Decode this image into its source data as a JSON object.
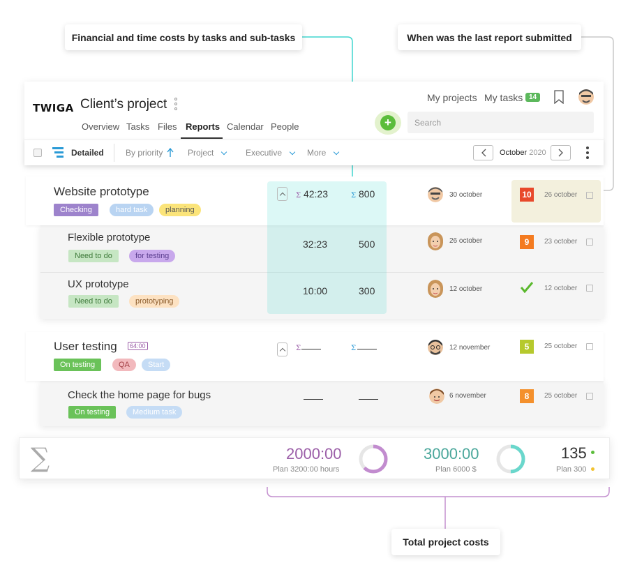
{
  "callouts": {
    "costs": "Financial and time costs by tasks and sub-tasks",
    "last_report": "When was the last report submitted",
    "total": "Total project costs"
  },
  "header": {
    "logo": "TWIGA",
    "project_title": "Client’s project",
    "tabs": [
      "Overview",
      "Tasks",
      "Files",
      "Reports",
      "Calendar",
      "People"
    ],
    "active_tab": "Reports",
    "my_projects": "My projects",
    "my_tasks": "My tasks",
    "my_tasks_count": "14",
    "search_placeholder": "Search"
  },
  "toolbar": {
    "view": "Detailed",
    "by_priority": "By priority",
    "project": "Project",
    "executive": "Executive",
    "more": "More",
    "month": "October",
    "year": "2020"
  },
  "tasks": [
    {
      "title": "Website prototype",
      "tags": [
        "Checking",
        "hard task",
        "planning"
      ],
      "time": "42:23",
      "cost": "800",
      "exec_date": "30 october",
      "report_count": "10",
      "report_date": "26 october",
      "subtasks": [
        {
          "title": "Flexible prototype",
          "tags": [
            "Need to do",
            "for testing"
          ],
          "time": "32:23",
          "cost": "500",
          "exec_date": "26 october",
          "report_count": "9",
          "report_date": "23 october"
        },
        {
          "title": "UX prototype",
          "tags": [
            "Need to do",
            "prototyping"
          ],
          "time": "10:00",
          "cost": "300",
          "exec_date": "12 october",
          "report_count": "",
          "report_date": "12 october"
        }
      ]
    },
    {
      "title": "User testing",
      "estimate": "64:00",
      "tags": [
        "On testing",
        "QA",
        "Start"
      ],
      "exec_date": "12 november",
      "report_count": "5",
      "report_date": "25 october",
      "subtasks": [
        {
          "title": "Check the home page for bugs",
          "tags": [
            "On testing",
            "Medium task"
          ],
          "exec_date": "6 november",
          "report_count": "8",
          "report_date": "25 october"
        }
      ]
    }
  ],
  "totals": {
    "sigma": "∑",
    "time": "2000:00",
    "time_plan": "Plan 3200:00 hours",
    "time_fraction": 0.625,
    "cost": "3000:00",
    "cost_plan": "Plan 6000 $",
    "cost_fraction": 0.5,
    "reports": "135",
    "reports_plan": "Plan 300"
  },
  "colors": {
    "accent_teal": "#3fd6cf",
    "accent_purple": "#b36fc2",
    "purple_text": "#9b5ea8",
    "teal_text": "#4aa79b",
    "highlight_col": "#d9efef",
    "report_highlight": "#f3f0dd"
  }
}
